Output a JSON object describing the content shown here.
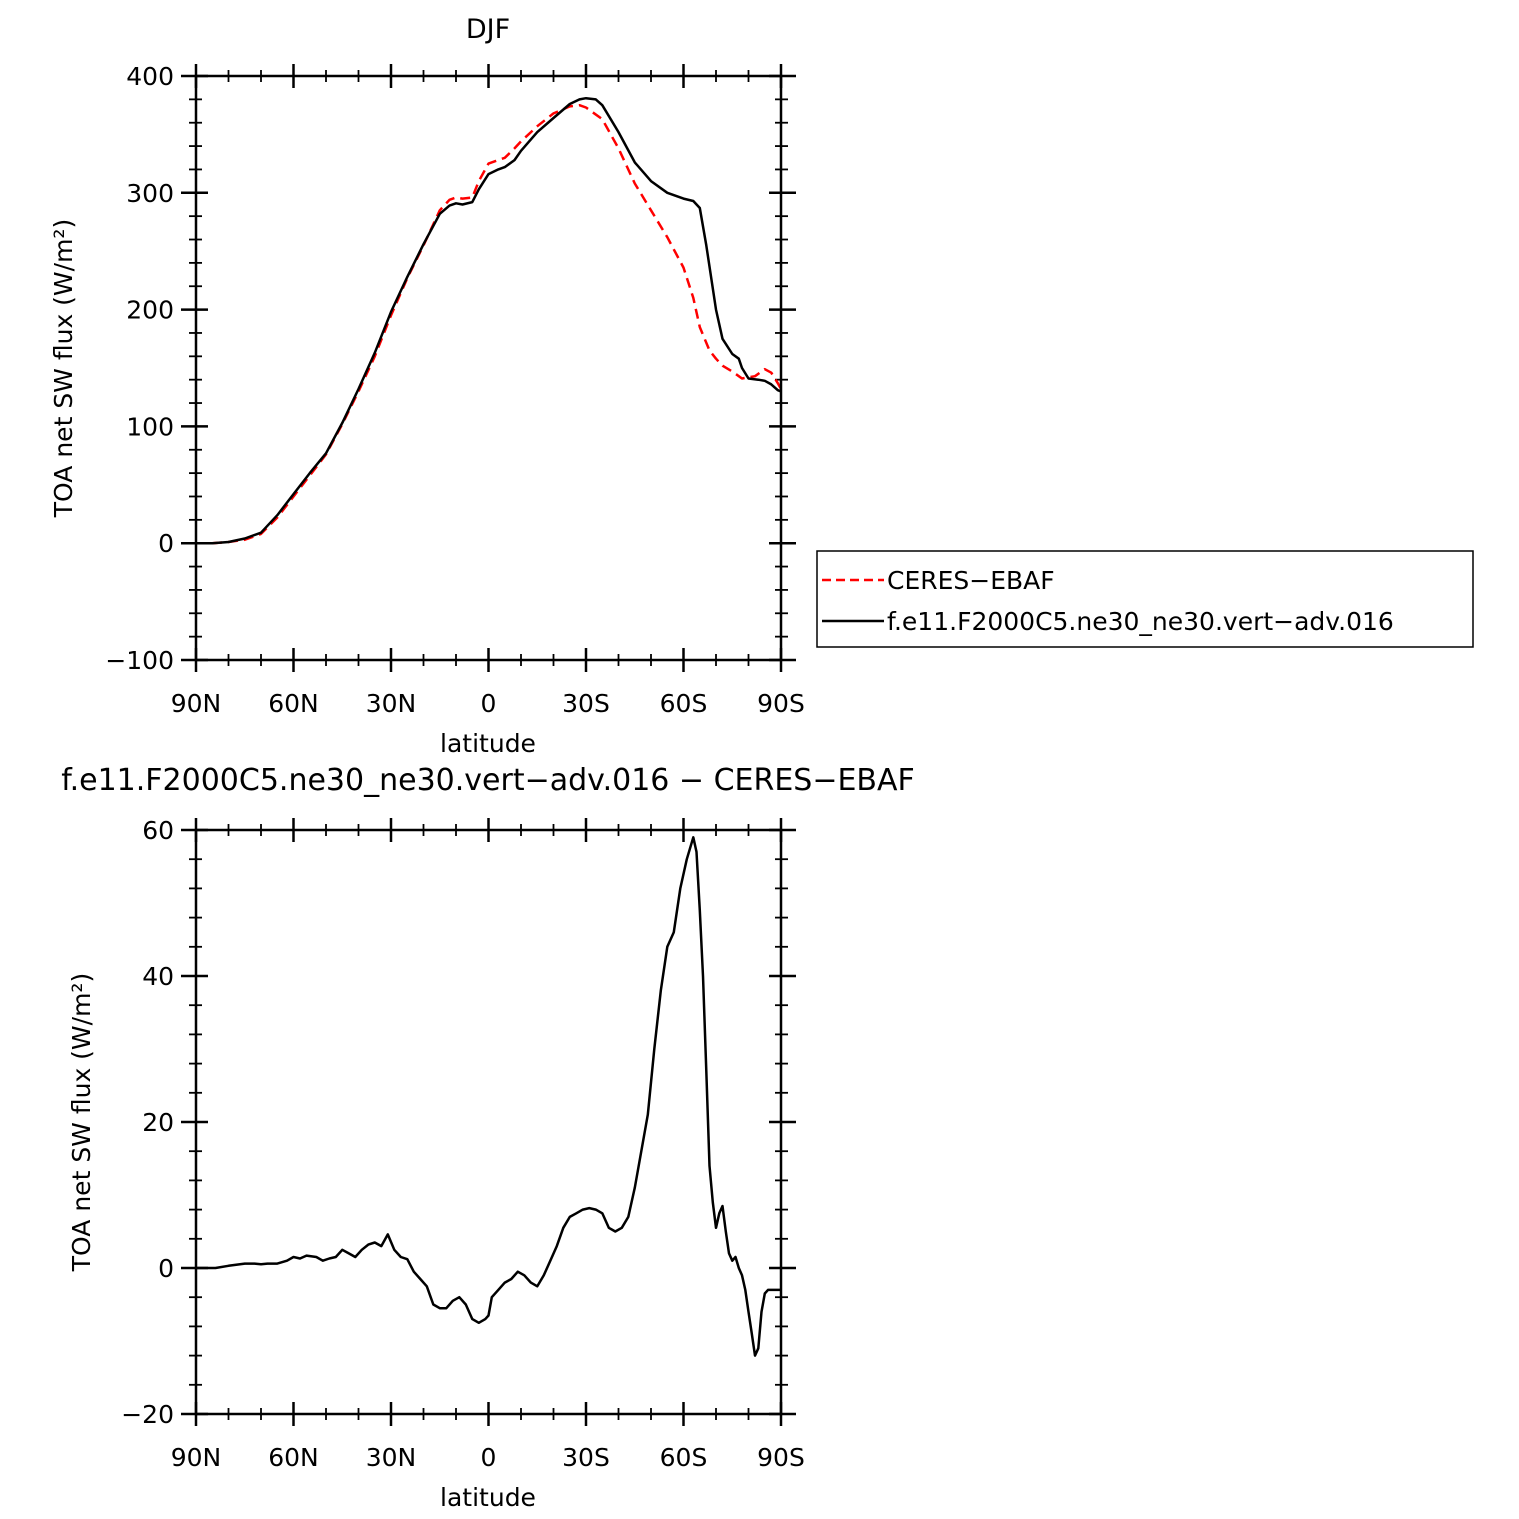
{
  "chart_data": [
    {
      "type": "line",
      "title": "DJF",
      "xlabel": "latitude",
      "ylabel": "TOA net SW flux (W/m²)",
      "xlim": [
        90,
        -90
      ],
      "ylim": [
        -100,
        400
      ],
      "x_ticks": [
        90,
        60,
        30,
        0,
        -30,
        -60,
        -90
      ],
      "x_tick_labels": [
        "90N",
        "60N",
        "30N",
        "0",
        "30S",
        "60S",
        "90S"
      ],
      "y_ticks": [
        -100,
        0,
        100,
        200,
        300,
        400
      ],
      "y_tick_labels": [
        "−100",
        "0",
        "100",
        "200",
        "300",
        "400"
      ],
      "legend": {
        "placement": "right",
        "entries": [
          "CERES−EBAF",
          "f.e11.F2000C5.ne30_ne30.vert−adv.016"
        ]
      },
      "series": [
        {
          "name": "CERES−EBAF",
          "color": "#ff0000",
          "dash": true,
          "x": [
            90,
            85,
            80,
            75,
            70,
            65,
            60,
            55,
            50,
            45,
            40,
            35,
            30,
            25,
            20,
            15,
            12,
            10,
            8,
            5,
            3,
            0,
            -3,
            -5,
            -8,
            -10,
            -15,
            -20,
            -25,
            -28,
            -30,
            -35,
            -40,
            -45,
            -50,
            -55,
            -60,
            -63,
            -65,
            -68,
            -70,
            -72,
            -75,
            -78,
            -80,
            -82,
            -85,
            -87,
            -89,
            -90
          ],
          "y": [
            0,
            0,
            1,
            3,
            8,
            22,
            40,
            58,
            76,
            102,
            130,
            160,
            195,
            227,
            255,
            285,
            294,
            296,
            295,
            296,
            310,
            325,
            328,
            330,
            338,
            344,
            357,
            368,
            374,
            375,
            373,
            363,
            338,
            308,
            285,
            262,
            236,
            210,
            185,
            165,
            158,
            152,
            147,
            141,
            142,
            143,
            149,
            146,
            137,
            132
          ]
        },
        {
          "name": "f.e11.F2000C5.ne30_ne30.vert−adv.016",
          "color": "#000000",
          "dash": false,
          "x": [
            90,
            85,
            80,
            75,
            70,
            65,
            60,
            55,
            50,
            45,
            40,
            35,
            30,
            25,
            20,
            15,
            12,
            10,
            8,
            5,
            3,
            0,
            -3,
            -5,
            -8,
            -10,
            -15,
            -20,
            -25,
            -28,
            -30,
            -33,
            -35,
            -40,
            -45,
            -50,
            -55,
            -60,
            -63,
            -65,
            -67,
            -70,
            -72,
            -75,
            -77,
            -78,
            -80,
            -83,
            -85,
            -87,
            -89,
            -90
          ],
          "y": [
            0,
            0,
            1,
            4,
            9,
            24,
            42,
            60,
            77,
            103,
            132,
            163,
            198,
            228,
            256,
            282,
            289,
            291,
            290,
            292,
            303,
            316,
            320,
            322,
            328,
            336,
            352,
            364,
            376,
            380,
            381,
            380,
            375,
            352,
            326,
            310,
            300,
            295,
            293,
            287,
            255,
            200,
            175,
            162,
            158,
            150,
            141,
            140,
            139,
            136,
            131,
            130
          ]
        }
      ]
    },
    {
      "type": "line",
      "title": "f.e11.F2000C5.ne30_ne30.vert−adv.016 − CERES−EBAF",
      "xlabel": "latitude",
      "ylabel": "TOA net SW flux (W/m²)",
      "xlim": [
        90,
        -90
      ],
      "ylim": [
        -20,
        60
      ],
      "x_ticks": [
        90,
        60,
        30,
        0,
        -30,
        -60,
        -90
      ],
      "x_tick_labels": [
        "90N",
        "60N",
        "30N",
        "0",
        "30S",
        "60S",
        "90S"
      ],
      "y_ticks": [
        -20,
        0,
        20,
        40,
        60
      ],
      "y_tick_labels": [
        "−20",
        "0",
        "20",
        "40",
        "60"
      ],
      "series": [
        {
          "color": "#000000",
          "dash": false,
          "x": [
            90,
            84,
            80,
            75,
            72,
            70,
            68,
            65,
            62,
            60,
            58,
            56,
            53,
            51,
            49,
            47,
            45,
            43,
            41,
            39,
            37,
            35,
            33,
            31,
            29,
            27,
            25,
            23,
            21,
            19,
            17,
            15,
            13,
            11,
            9,
            7,
            5,
            3,
            1,
            0,
            -1,
            -3,
            -5,
            -7,
            -9,
            -11,
            -13,
            -15,
            -17,
            -19,
            -21,
            -23,
            -25,
            -27,
            -29,
            -31,
            -33,
            -35,
            -37,
            -39,
            -41,
            -43,
            -45,
            -47,
            -49,
            -51,
            -53,
            -55,
            -57,
            -59,
            -61,
            -63,
            -64,
            -65,
            -66,
            -67,
            -68,
            -69,
            -70,
            -71,
            -72,
            -73,
            -74,
            -75,
            -76,
            -77,
            -78,
            -79,
            -80,
            -81,
            -82,
            -83,
            -84,
            -85,
            -86,
            -87,
            -88,
            -89,
            -90
          ],
          "y": [
            0,
            0,
            0.3,
            0.6,
            0.6,
            0.5,
            0.6,
            0.6,
            1.0,
            1.5,
            1.3,
            1.7,
            1.5,
            1.0,
            1.3,
            1.5,
            2.5,
            2.0,
            1.5,
            2.5,
            3.2,
            3.5,
            3.0,
            4.6,
            2.5,
            1.5,
            1.2,
            -0.5,
            -1.5,
            -2.5,
            -5.0,
            -5.5,
            -5.5,
            -4.5,
            -4.0,
            -5.0,
            -7.0,
            -7.5,
            -7.0,
            -6.5,
            -4.0,
            -3.0,
            -2.0,
            -1.5,
            -0.5,
            -1.0,
            -2.0,
            -2.5,
            -1.0,
            1.0,
            3.0,
            5.5,
            7.0,
            7.5,
            8.0,
            8.2,
            8.0,
            7.5,
            5.5,
            5.0,
            5.5,
            7.0,
            11.0,
            16.0,
            21.0,
            30.0,
            38.0,
            44.0,
            46.0,
            52.0,
            56.0,
            59.0,
            57.0,
            49.0,
            40.0,
            27.0,
            14.0,
            9.0,
            5.5,
            7.5,
            8.5,
            5.0,
            2.0,
            1.0,
            1.5,
            0.0,
            -1.0,
            -3.0,
            -6.0,
            -9.0,
            -12.0,
            -11.0,
            -6.0,
            -3.5,
            -3.0,
            -3.0,
            -3.0,
            -3.0,
            -3.0
          ]
        }
      ]
    }
  ]
}
